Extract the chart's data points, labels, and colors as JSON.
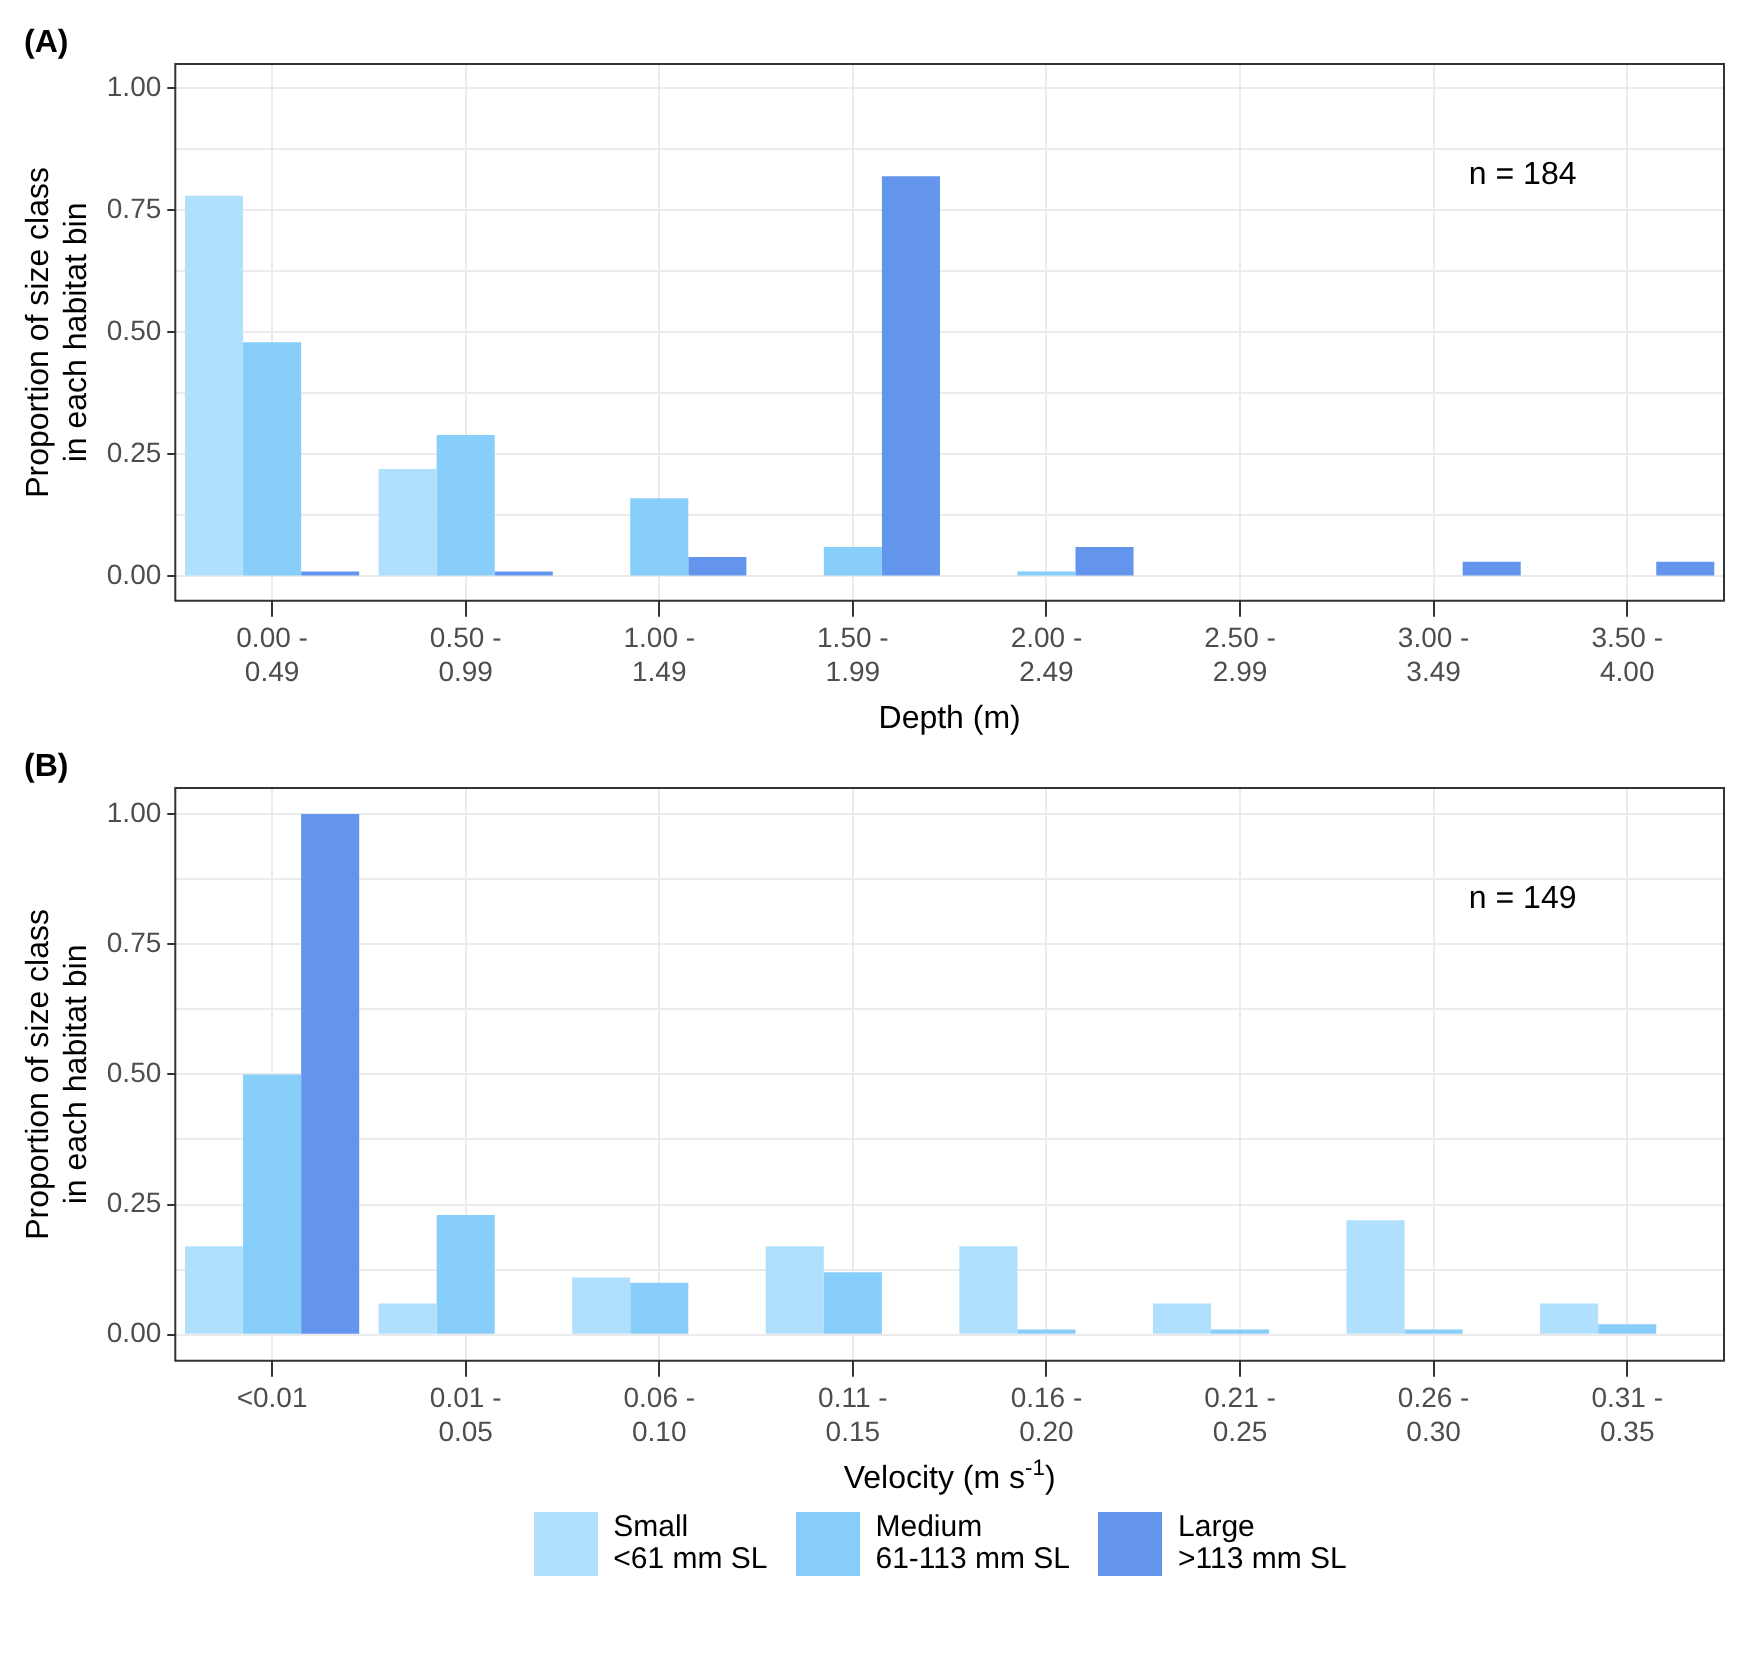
{
  "chart_data": [
    {
      "type": "bar",
      "title": "(A)",
      "xlabel": "Depth (m)",
      "ylabel": "Proportion of size class\nin each habitat bin",
      "categories": [
        "0.00 -\n0.49",
        "0.50 -\n0.99",
        "1.00 -\n1.49",
        "1.50 -\n1.99",
        "2.00 -\n2.49",
        "2.50 -\n2.99",
        "3.00 -\n3.49",
        "3.50 -\n4.00"
      ],
      "series": [
        {
          "color": "#b0e0fe",
          "values": [
            0.78,
            0.22,
            null,
            null,
            null,
            null,
            null,
            null
          ]
        },
        {
          "color": "#87cefa",
          "values": [
            0.48,
            0.29,
            0.16,
            0.06,
            0.01,
            null,
            null,
            null
          ]
        },
        {
          "color": "#6495ed",
          "values": [
            0.01,
            0.01,
            0.04,
            0.82,
            0.06,
            null,
            0.03,
            0.03
          ]
        }
      ],
      "ylim": [
        -0.05,
        1.05
      ],
      "yticks": [
        {
          "value": 0,
          "label": "0.00"
        },
        {
          "value": 0.125,
          "label": null
        },
        {
          "value": 0.25,
          "label": "0.25"
        },
        {
          "value": 0.375,
          "label": null
        },
        {
          "value": 0.5,
          "label": "0.50"
        },
        {
          "value": 0.625,
          "label": null
        },
        {
          "value": 0.75,
          "label": "0.75"
        },
        {
          "value": 0.875,
          "label": null
        },
        {
          "value": 1,
          "label": "1.00"
        }
      ],
      "annotations": [
        "n = 184"
      ],
      "grid": true
    },
    {
      "type": "bar",
      "title": "(B)",
      "xlabel": "Velocity (m s$^{-1}$)",
      "ylabel": "Proportion of size class\nin each habitat bin",
      "categories": [
        "<0.01",
        "0.01 -\n0.05",
        "0.06 -\n0.10",
        "0.11 -\n0.15",
        "0.16 -\n0.20",
        "0.21 -\n0.25",
        "0.26 -\n0.30",
        "0.31 -\n0.35"
      ],
      "series": [
        {
          "name": "Small\n<61 mm SL",
          "color": "#b0e0fe",
          "values": [
            0.17,
            0.06,
            0.11,
            0.17,
            0.17,
            0.06,
            0.22,
            0.06
          ]
        },
        {
          "name": "Medium\n61-113 mm SL",
          "color": "#87cefa",
          "values": [
            0.5,
            0.23,
            0.1,
            0.12,
            0.01,
            0.01,
            0.01,
            0.02
          ]
        },
        {
          "name": "Large\n>113 mm SL",
          "color": "#6495ed",
          "values": [
            1.0,
            null,
            null,
            null,
            null,
            null,
            null,
            null
          ]
        }
      ],
      "ylim": [
        -0.05,
        1.05
      ],
      "yticks": [
        {
          "value": 0,
          "label": "0.00"
        },
        {
          "value": 0.125,
          "label": null
        },
        {
          "value": 0.25,
          "label": "0.25"
        },
        {
          "value": 0.375,
          "label": null
        },
        {
          "value": 0.5,
          "label": "0.50"
        },
        {
          "value": 0.625,
          "label": null
        },
        {
          "value": 0.75,
          "label": "0.75"
        },
        {
          "value": 0.875,
          "label": null
        },
        {
          "value": 1,
          "label": "1.00"
        }
      ],
      "annotations": [
        "n = 149"
      ],
      "grid": true,
      "legend": "bottom"
    }
  ]
}
